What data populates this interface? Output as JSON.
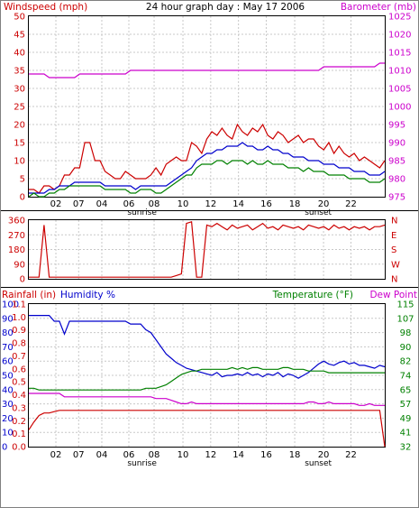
{
  "chart_data": [
    {
      "type": "line",
      "title": "24 hour graph day : May 17 2006",
      "left_label": "Windspeed (mph)",
      "right_label": "Barometer (mb)",
      "x_ticks": [
        "02",
        "07",
        "04",
        "06",
        "08",
        "10",
        "12",
        "14",
        "16",
        "18",
        "20",
        "22"
      ],
      "sunrise_label": "sunrise",
      "sunset_label": "sunset",
      "y_left": {
        "ticks": [
          "0",
          "5",
          "10",
          "15",
          "20",
          "25",
          "30",
          "35",
          "40",
          "45",
          "50"
        ],
        "range": [
          0,
          50
        ]
      },
      "y_right": {
        "ticks": [
          "975",
          "980",
          "985",
          "990",
          "995",
          "1000",
          "1005",
          "1010",
          "1015",
          "1020",
          "1025"
        ],
        "range": [
          975,
          1025
        ]
      },
      "series": [
        {
          "color": "#cc0000",
          "axis": "left",
          "values": [
            2,
            2,
            1,
            3,
            3,
            2,
            3,
            6,
            6,
            8,
            8,
            15,
            15,
            10,
            10,
            7,
            6,
            5,
            5,
            7,
            6,
            5,
            5,
            5,
            6,
            8,
            6,
            9,
            10,
            11,
            10,
            10,
            15,
            14,
            12,
            16,
            18,
            17,
            19,
            17,
            16,
            20,
            18,
            17,
            19,
            18,
            20,
            17,
            16,
            18,
            17,
            15,
            16,
            17,
            15,
            16,
            16,
            14,
            13,
            15,
            12,
            14,
            12,
            11,
            12,
            10,
            11,
            10,
            9,
            8,
            10
          ]
        },
        {
          "color": "#0000cc",
          "axis": "left",
          "values": [
            1,
            1,
            1,
            1,
            2,
            2,
            3,
            3,
            3,
            4,
            4,
            4,
            4,
            4,
            4,
            3,
            3,
            3,
            3,
            3,
            3,
            2,
            3,
            3,
            3,
            3,
            3,
            3,
            4,
            5,
            6,
            7,
            8,
            10,
            11,
            12,
            12,
            13,
            13,
            14,
            14,
            14,
            15,
            14,
            14,
            13,
            13,
            14,
            13,
            13,
            12,
            12,
            11,
            11,
            11,
            10,
            10,
            10,
            9,
            9,
            9,
            8,
            8,
            8,
            7,
            7,
            7,
            6,
            6,
            6,
            7
          ]
        },
        {
          "color": "#008000",
          "axis": "left",
          "values": [
            0,
            1,
            0,
            0,
            1,
            1,
            2,
            2,
            3,
            3,
            3,
            3,
            3,
            3,
            3,
            2,
            2,
            2,
            2,
            2,
            1,
            1,
            2,
            2,
            2,
            1,
            1,
            2,
            3,
            4,
            5,
            6,
            6,
            8,
            9,
            9,
            9,
            10,
            10,
            9,
            10,
            10,
            10,
            9,
            10,
            9,
            9,
            10,
            9,
            9,
            9,
            8,
            8,
            8,
            7,
            8,
            7,
            7,
            7,
            6,
            6,
            6,
            6,
            5,
            5,
            5,
            5,
            4,
            4,
            4,
            5
          ]
        },
        {
          "color": "#cc00cc",
          "axis": "right",
          "values": [
            1009,
            1009,
            1009,
            1009,
            1008,
            1008,
            1008,
            1008,
            1008,
            1008,
            1009,
            1009,
            1009,
            1009,
            1009,
            1009,
            1009,
            1009,
            1009,
            1009,
            1010,
            1010,
            1010,
            1010,
            1010,
            1010,
            1010,
            1010,
            1010,
            1010,
            1010,
            1010,
            1010,
            1010,
            1010,
            1010,
            1010,
            1010,
            1010,
            1010,
            1010,
            1010,
            1010,
            1010,
            1010,
            1010,
            1010,
            1010,
            1010,
            1010,
            1010,
            1010,
            1010,
            1010,
            1010,
            1010,
            1010,
            1010,
            1011,
            1011,
            1011,
            1011,
            1011,
            1011,
            1011,
            1011,
            1011,
            1011,
            1011,
            1012,
            1012
          ]
        }
      ]
    },
    {
      "type": "line",
      "y_left": {
        "ticks": [
          "0",
          "90",
          "180",
          "270",
          "360"
        ],
        "range": [
          0,
          360
        ]
      },
      "y_right_labels": [
        "N",
        "W",
        "S",
        "E",
        "N"
      ],
      "series": [
        {
          "color": "#cc0000",
          "values": [
            10,
            10,
            10,
            330,
            10,
            10,
            10,
            10,
            10,
            10,
            10,
            10,
            10,
            10,
            10,
            10,
            10,
            10,
            10,
            10,
            10,
            10,
            10,
            10,
            10,
            10,
            10,
            10,
            10,
            20,
            30,
            340,
            350,
            10,
            10,
            330,
            320,
            340,
            320,
            300,
            330,
            310,
            320,
            330,
            300,
            320,
            340,
            310,
            320,
            300,
            330,
            320,
            310,
            320,
            300,
            330,
            320,
            310,
            320,
            300,
            330,
            310,
            320,
            300,
            320,
            310,
            320,
            300,
            320,
            320,
            330
          ]
        }
      ]
    },
    {
      "type": "line",
      "left_label_rain": "Rainfall (in)",
      "left_label_humidity": "Humidity %",
      "right_label_temp": "Temperature (°F)",
      "right_label_dew": "Dew Point",
      "x_ticks": [
        "02",
        "07",
        "04",
        "06",
        "08",
        "10",
        "12",
        "14",
        "16",
        "18",
        "20",
        "22"
      ],
      "sunrise_label": "sunrise",
      "sunset_label": "sunset",
      "y_humidity": {
        "ticks": [
          "0",
          "10",
          "20",
          "30",
          "40",
          "50",
          "60",
          "70",
          "80",
          "90",
          "100"
        ],
        "range": [
          0,
          100
        ]
      },
      "y_rain": {
        "ticks": [
          "0.0",
          "0.1",
          "0.2",
          "0.3",
          "0.4",
          "0.5",
          "0.6",
          "0.7",
          "0.8",
          "0.9",
          "1.0",
          "1.1"
        ],
        "range": [
          0,
          1.1
        ]
      },
      "y_temp": {
        "ticks": [
          "32",
          "41",
          "49",
          "57",
          "65",
          "74",
          "82",
          "90",
          "98",
          "107",
          "115"
        ],
        "range": [
          32,
          115
        ]
      },
      "series": [
        {
          "color": "#0000cc",
          "axis": "humidity",
          "values": [
            92,
            92,
            92,
            92,
            92,
            88,
            88,
            79,
            88,
            88,
            88,
            88,
            88,
            88,
            88,
            88,
            88,
            88,
            88,
            88,
            86,
            86,
            86,
            82,
            80,
            75,
            70,
            65,
            62,
            59,
            57,
            55,
            54,
            53,
            52,
            51,
            50,
            52,
            49,
            50,
            50,
            51,
            50,
            52,
            50,
            51,
            49,
            51,
            50,
            52,
            49,
            51,
            50,
            48,
            50,
            52,
            55,
            58,
            60,
            58,
            57,
            59,
            60,
            58,
            59,
            57,
            57,
            56,
            55,
            57,
            56
          ]
        },
        {
          "color": "#008000",
          "axis": "temp",
          "values": [
            66,
            66,
            65,
            65,
            65,
            65,
            65,
            65,
            65,
            65,
            65,
            65,
            65,
            65,
            65,
            65,
            65,
            65,
            65,
            65,
            65,
            65,
            65,
            66,
            66,
            66,
            67,
            68,
            70,
            72,
            74,
            75,
            76,
            76,
            77,
            77,
            77,
            77,
            77,
            77,
            78,
            77,
            78,
            77,
            78,
            78,
            77,
            77,
            77,
            77,
            78,
            78,
            77,
            77,
            77,
            76,
            76,
            76,
            76,
            75,
            75,
            75,
            75,
            75,
            75,
            75,
            75,
            75,
            75,
            75,
            75
          ]
        },
        {
          "color": "#cc00cc",
          "axis": "temp",
          "values": [
            63,
            63,
            63,
            63,
            63,
            63,
            63,
            61,
            61,
            61,
            61,
            61,
            61,
            61,
            61,
            61,
            61,
            61,
            61,
            61,
            61,
            61,
            61,
            61,
            61,
            60,
            60,
            60,
            59,
            58,
            57,
            57,
            58,
            57,
            57,
            57,
            57,
            57,
            57,
            57,
            57,
            57,
            57,
            57,
            57,
            57,
            57,
            57,
            57,
            57,
            57,
            57,
            57,
            57,
            57,
            58,
            58,
            57,
            57,
            58,
            57,
            57,
            57,
            57,
            57,
            56,
            56,
            57,
            56,
            56,
            56
          ]
        },
        {
          "color": "#cc0000",
          "axis": "rain",
          "values": [
            0.13,
            0.19,
            0.24,
            0.26,
            0.26,
            0.27,
            0.28,
            0.28,
            0.28,
            0.28,
            0.28,
            0.28,
            0.28,
            0.28,
            0.28,
            0.28,
            0.28,
            0.28,
            0.28,
            0.28,
            0.28,
            0.28,
            0.28,
            0.28,
            0.28,
            0.28,
            0.28,
            0.28,
            0.28,
            0.28,
            0.28,
            0.28,
            0.28,
            0.28,
            0.28,
            0.28,
            0.28,
            0.28,
            0.28,
            0.28,
            0.28,
            0.28,
            0.28,
            0.28,
            0.28,
            0.28,
            0.28,
            0.28,
            0.28,
            0.28,
            0.28,
            0.28,
            0.28,
            0.28,
            0.28,
            0.28,
            0.28,
            0.28,
            0.28,
            0.28,
            0.28,
            0.28,
            0.28,
            0.28,
            0.28,
            0.28,
            0.28,
            0.28,
            0.28,
            0.28,
            0.0
          ]
        }
      ]
    }
  ]
}
